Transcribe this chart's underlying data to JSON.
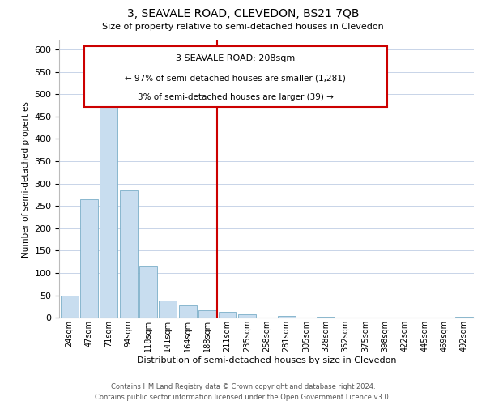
{
  "title": "3, SEAVALE ROAD, CLEVEDON, BS21 7QB",
  "subtitle": "Size of property relative to semi-detached houses in Clevedon",
  "xlabel": "Distribution of semi-detached houses by size in Clevedon",
  "ylabel": "Number of semi-detached properties",
  "bar_labels": [
    "24sqm",
    "47sqm",
    "71sqm",
    "94sqm",
    "118sqm",
    "141sqm",
    "164sqm",
    "188sqm",
    "211sqm",
    "235sqm",
    "258sqm",
    "281sqm",
    "305sqm",
    "328sqm",
    "352sqm",
    "375sqm",
    "398sqm",
    "422sqm",
    "445sqm",
    "469sqm",
    "492sqm"
  ],
  "bar_values": [
    50,
    265,
    500,
    285,
    115,
    38,
    27,
    17,
    13,
    8,
    0,
    5,
    0,
    2,
    0,
    0,
    0,
    0,
    0,
    0,
    2
  ],
  "bar_color": "#c8ddef",
  "bar_edge_color": "#7aaec8",
  "vline_x_index": 8,
  "vline_color": "#cc0000",
  "ylim": [
    0,
    620
  ],
  "yticks": [
    0,
    50,
    100,
    150,
    200,
    250,
    300,
    350,
    400,
    450,
    500,
    550,
    600
  ],
  "annotation_title": "3 SEAVALE ROAD: 208sqm",
  "annotation_line1": "← 97% of semi-detached houses are smaller (1,281)",
  "annotation_line2": "3% of semi-detached houses are larger (39) →",
  "annotation_box_color": "#ffffff",
  "annotation_box_edge": "#cc0000",
  "footer1": "Contains HM Land Registry data © Crown copyright and database right 2024.",
  "footer2": "Contains public sector information licensed under the Open Government Licence v3.0.",
  "background_color": "#ffffff",
  "grid_color": "#c8d4e8"
}
